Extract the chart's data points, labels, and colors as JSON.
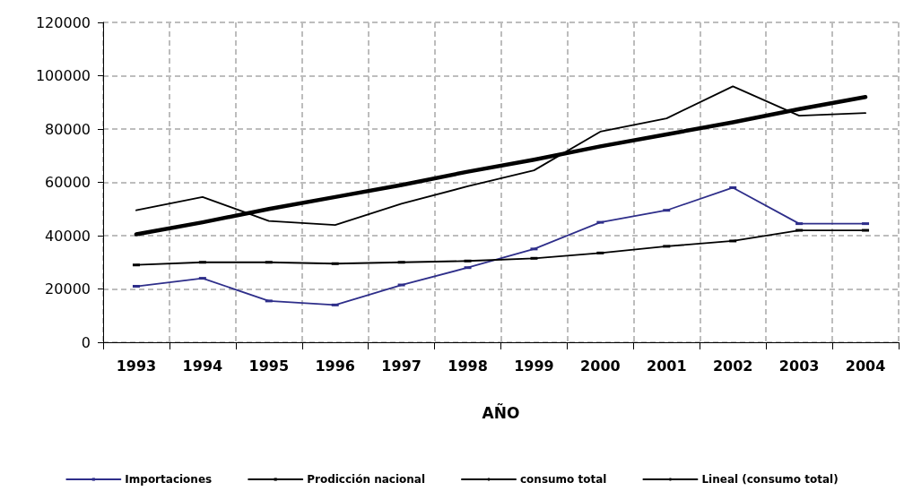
{
  "chart_data": {
    "type": "line",
    "xlabel": "AÑO",
    "categories": [
      "1993",
      "1994",
      "1995",
      "1996",
      "1997",
      "1998",
      "1999",
      "2000",
      "2001",
      "2002",
      "2003",
      "2004"
    ],
    "series": [
      {
        "name": "Importaciones",
        "color": "#2e2e8a",
        "marker": "square",
        "values": [
          21000,
          24000,
          15500,
          14000,
          21500,
          28000,
          35000,
          45000,
          49500,
          58000,
          44500,
          44500
        ]
      },
      {
        "name": "Prodicción nacional",
        "color": "#000000",
        "marker": "square",
        "values": [
          29000,
          30000,
          30000,
          29500,
          30000,
          30500,
          31500,
          33500,
          36000,
          38000,
          42000,
          42000
        ]
      },
      {
        "name": "consumo total",
        "color": "#000000",
        "values": [
          49500,
          54500,
          45500,
          44000,
          52000,
          58500,
          64500,
          79000,
          84000,
          96000,
          85000,
          86000
        ]
      },
      {
        "name": "Lineal (consumo total)",
        "type": "line",
        "color": "#000000",
        "values": [
          40500,
          45000,
          50000,
          54500,
          59000,
          64000,
          68500,
          73500,
          78000,
          82500,
          87500,
          92000
        ]
      }
    ],
    "ylim": [
      0,
      120000
    ],
    "yticks": [
      0,
      20000,
      40000,
      60000,
      80000,
      100000,
      120000
    ],
    "grid": true,
    "legend": "bottom"
  }
}
